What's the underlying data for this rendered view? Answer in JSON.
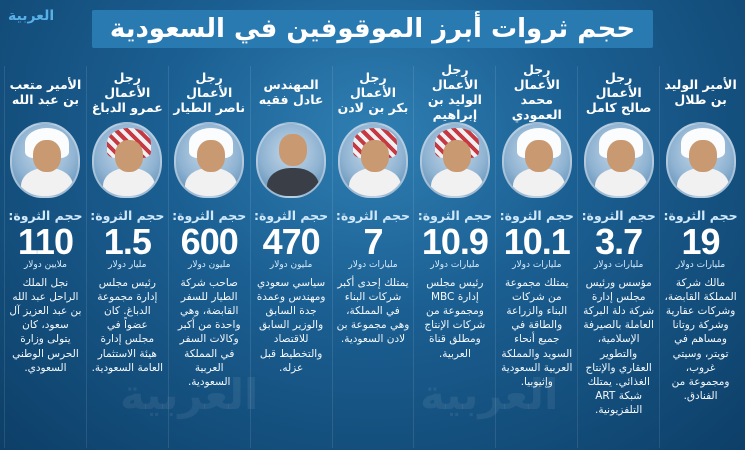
{
  "title": "حجم ثروات أبرز الموقوفين في السعودية",
  "logo": "العربية",
  "wealth_label": "حجم الثروة:",
  "people": [
    {
      "name_line1": "الأمير الوليد",
      "name_line2": "بن طلال",
      "value": "19",
      "unit": "مليارات دولار",
      "headwear": "white",
      "desc": "مالك شركة المملكة القابضة، وشركات عقارية وشركة روتانا ومساهم في تويتر، وسيتي غروب، ومجموعة من الفنادق."
    },
    {
      "name_line1": "رجل الأعمال",
      "name_line2": "صالح كامل",
      "value": "3.7",
      "unit": "مليارات دولار",
      "headwear": "white",
      "desc": "مؤسس ورئيس مجلس إدارة شركة دلة البركة العاملة بالصيرفة الإسلامية، والتطوير العقاري والإنتاج الغذائي. يمتلك شبكة ART التلفزيونية."
    },
    {
      "name_line1": "رجل الأعمال",
      "name_line2": "محمد العمودي",
      "value": "10.1",
      "unit": "مليارات دولار",
      "headwear": "white",
      "desc": "يمتلك مجموعة من شركات البناء والزراعة والطاقة في جميع أنحاء السويد والمملكة العربية السعودية وإثيوبيا."
    },
    {
      "name_line1": "رجل الأعمال",
      "name_line2": "الوليد بن إبراهيم",
      "value": "10.9",
      "unit": "مليارات دولار",
      "headwear": "red",
      "desc": "رئيس مجلس إدارة MBC ومجموعة من شركات الإنتاج ومطلق قناة العربية."
    },
    {
      "name_line1": "رجل الأعمال",
      "name_line2": "بكر بن لادن",
      "value": "7",
      "unit": "مليارات دولار",
      "headwear": "red",
      "desc": "يمتلك إحدى أكبر شركات البناء في المملكة، وهي مجموعة بن لادن السعودية."
    },
    {
      "name_line1": "المهندس",
      "name_line2": "عادل فقيه",
      "value": "470",
      "unit": "مليون دولار",
      "headwear": "none",
      "desc": "سياسي سعودي ومهندس وعمدة جدة السابق والوزير السابق للاقتصاد والتخطيط قبل عزله."
    },
    {
      "name_line1": "رجل الأعمال",
      "name_line2": "ناصر الطيار",
      "value": "600",
      "unit": "مليون دولار",
      "headwear": "white",
      "desc": "صاحب شركة الطيار للسفر القابضة، وهي واحدة من أكبر وكالات السفر في المملكة العربية السعودية."
    },
    {
      "name_line1": "رجل الأعمال",
      "name_line2": "عمرو الدباغ",
      "value": "1.5",
      "unit": "مليار دولار",
      "headwear": "red",
      "desc": "رئيس مجلس إدارة مجموعة الدباغ. كان عضواً في مجلس إدارة هيئة الاستثمار العامة السعودية."
    },
    {
      "name_line1": "الأمير متعب",
      "name_line2": "بن عبد الله",
      "value": "110",
      "unit": "ملايين دولار",
      "headwear": "white",
      "desc": "نجل الملك الراحل عبد الله بن عبد العزيز آل سعود، كان يتولى وزارة الحرس الوطني السعودي."
    }
  ]
}
